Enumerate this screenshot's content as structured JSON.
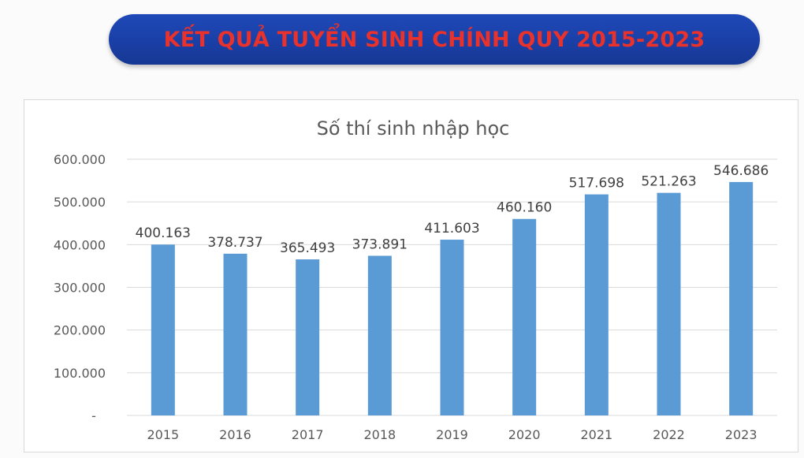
{
  "banner": {
    "title": "KẾT QUẢ TUYỂN SINH CHÍNH QUY 2015-2023"
  },
  "colors": {
    "banner_bg": "#1a3fa6",
    "banner_text": "#e8322b",
    "bar": "#5b9bd5"
  },
  "chart_data": {
    "type": "bar",
    "title": "Số thí sinh nhập học",
    "xlabel": "",
    "ylabel": "",
    "categories": [
      "2015",
      "2016",
      "2017",
      "2018",
      "2019",
      "2020",
      "2021",
      "2022",
      "2023"
    ],
    "values": [
      400163,
      378737,
      365493,
      373891,
      411603,
      460160,
      517698,
      521263,
      546686
    ],
    "data_labels": [
      "400.163",
      "378.737",
      "365.493",
      "373.891",
      "411.603",
      "460.160",
      "517.698",
      "521.263",
      "546.686"
    ],
    "ylim": [
      0,
      600000
    ],
    "y_ticks": [
      0,
      100000,
      200000,
      300000,
      400000,
      500000,
      600000
    ],
    "y_tick_labels": [
      "-",
      "100.000",
      "200.000",
      "300.000",
      "400.000",
      "500.000",
      "600.000"
    ],
    "grid": true,
    "legend": "none"
  }
}
